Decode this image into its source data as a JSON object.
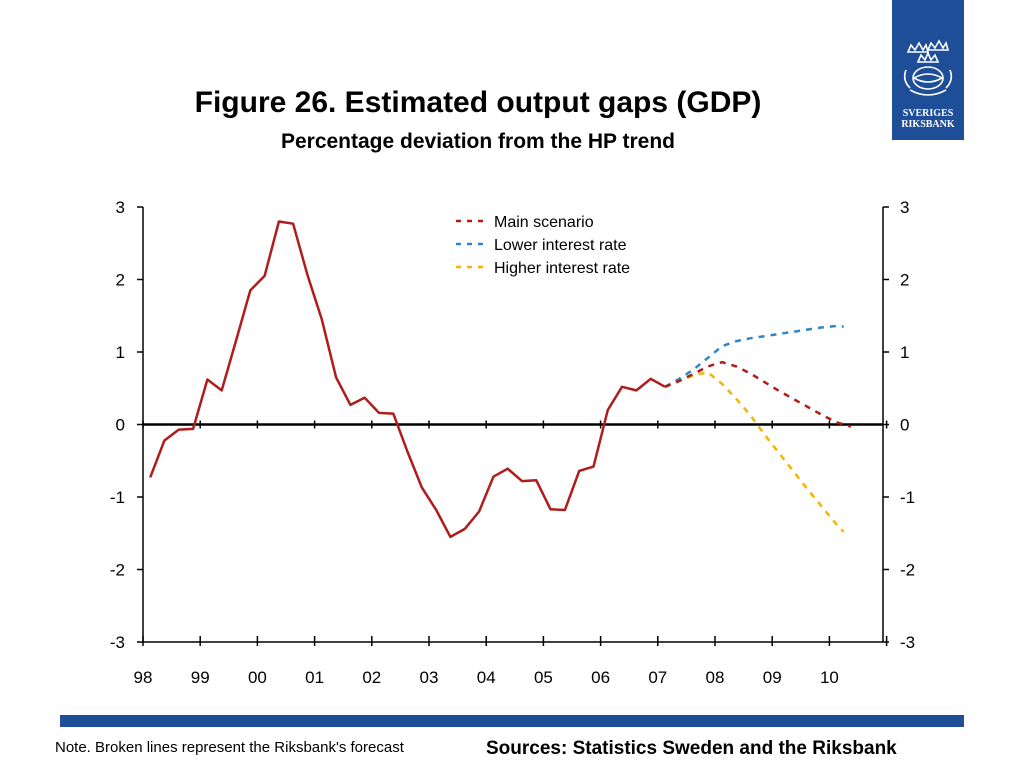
{
  "header": {
    "title": "Figure 26. Estimated output gaps (GDP)",
    "subtitle": "Percentage deviation from the HP trend"
  },
  "logo": {
    "line1": "SVERIGES",
    "line2": "RIKSBANK",
    "icon": "riksbank-crown-emblem-icon"
  },
  "footer": {
    "note": "Note. Broken lines represent the Riksbank's forecast",
    "sources": "Sources: Statistics Sweden and the Riksbank"
  },
  "colors": {
    "brand_blue": "#1f4e98",
    "main": "#b01c1c",
    "lower": "#2e86c8",
    "higher": "#f2b600"
  },
  "chart_data": {
    "type": "line",
    "title": "Figure 26. Estimated output gaps (GDP)",
    "subtitle": "Percentage deviation from the HP trend",
    "xlabel": "",
    "ylabel": "",
    "ylim": [
      -3,
      3
    ],
    "xlim": [
      1998,
      2011
    ],
    "yticks": [
      "3",
      "2",
      "1",
      "0",
      "-1",
      "-2",
      "-3"
    ],
    "xticks": [
      "98",
      "99",
      "00",
      "01",
      "02",
      "03",
      "04",
      "05",
      "06",
      "07",
      "08",
      "09",
      "10"
    ],
    "legend_position": "top-center",
    "grid": false,
    "outcome": {
      "x": [
        1998.125,
        1998.375,
        1998.625,
        1998.875,
        1999.125,
        1999.375,
        1999.625,
        1999.875,
        2000.125,
        2000.375,
        2000.625,
        2000.875,
        2001.125,
        2001.375,
        2001.625,
        2001.875,
        2002.125,
        2002.375,
        2002.625,
        2002.875,
        2003.125,
        2003.375,
        2003.625,
        2003.875,
        2004.125,
        2004.375,
        2004.625,
        2004.875,
        2005.125,
        2005.375,
        2005.625,
        2005.875,
        2006.125,
        2006.375,
        2006.625,
        2006.875,
        2007.125
      ],
      "values": [
        -0.73,
        -0.22,
        -0.07,
        -0.06,
        0.62,
        0.47,
        1.15,
        1.85,
        2.05,
        2.8,
        2.77,
        2.06,
        1.45,
        0.65,
        0.27,
        0.37,
        0.16,
        0.15,
        -0.38,
        -0.87,
        -1.18,
        -1.55,
        -1.44,
        -1.2,
        -0.72,
        -0.61,
        -0.78,
        -0.77,
        -1.17,
        -1.18,
        -0.64,
        -0.58,
        0.2,
        0.52,
        0.47,
        0.63,
        0.52
      ]
    },
    "series": [
      {
        "name": "Main scenario",
        "color": "#b01c1c",
        "x": [
          2007.125,
          2007.375,
          2007.625,
          2007.875,
          2008.125,
          2008.375,
          2008.625,
          2008.875,
          2009.125,
          2009.375,
          2009.625,
          2009.875,
          2010.125,
          2010.375
        ],
        "values": [
          0.52,
          0.6,
          0.7,
          0.8,
          0.86,
          0.8,
          0.7,
          0.58,
          0.46,
          0.35,
          0.24,
          0.13,
          0.03,
          -0.03
        ]
      },
      {
        "name": "Lower interest rate",
        "color": "#2e86c8",
        "x": [
          2007.125,
          2007.375,
          2007.625,
          2007.875,
          2008.125,
          2008.375,
          2008.625,
          2008.875,
          2009.125,
          2009.375,
          2009.625,
          2009.875,
          2010.125,
          2010.25
        ],
        "values": [
          0.52,
          0.63,
          0.76,
          0.92,
          1.08,
          1.15,
          1.19,
          1.22,
          1.25,
          1.28,
          1.31,
          1.34,
          1.36,
          1.35
        ]
      },
      {
        "name": "Higher interest rate",
        "color": "#f2b600",
        "x": [
          2007.125,
          2007.375,
          2007.625,
          2007.875,
          2008.125,
          2008.375,
          2008.625,
          2008.875,
          2009.125,
          2009.375,
          2009.625,
          2009.875,
          2010.125,
          2010.25
        ],
        "values": [
          0.52,
          0.6,
          0.68,
          0.72,
          0.56,
          0.35,
          0.12,
          -0.15,
          -0.4,
          -0.65,
          -0.9,
          -1.14,
          -1.38,
          -1.48
        ]
      }
    ]
  }
}
